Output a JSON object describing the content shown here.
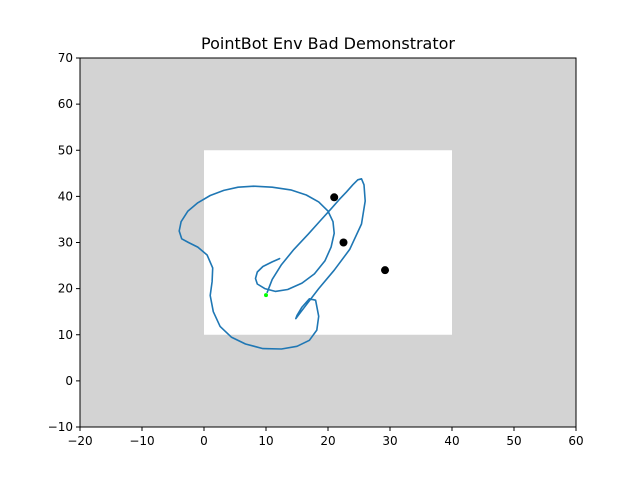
{
  "chart_data": {
    "type": "line",
    "title": "PointBot Env Bad Demonstrator",
    "xlabel": "",
    "ylabel": "",
    "xlim": [
      -20,
      60
    ],
    "ylim": [
      -10,
      70
    ],
    "xticks": [
      -20,
      -10,
      0,
      10,
      20,
      30,
      40,
      50,
      60
    ],
    "yticks": [
      -10,
      0,
      10,
      20,
      30,
      40,
      50,
      60,
      70
    ],
    "xtick_labels": [
      "−20",
      "−10",
      "0",
      "10",
      "20",
      "30",
      "40",
      "50",
      "60"
    ],
    "ytick_labels": [
      "−10",
      "0",
      "10",
      "20",
      "30",
      "40",
      "50",
      "60",
      "70"
    ],
    "grid": false,
    "colors": {
      "plot_background": "#d3d3d3",
      "free_region": "#ffffff",
      "trajectory": "#1f77b4",
      "start_point": "#00ff00",
      "obstacle_points": "#000000"
    },
    "free_region": {
      "x": [
        0,
        40
      ],
      "y": [
        10,
        50
      ]
    },
    "series": [
      {
        "x": [
          12.2,
          11.0,
          9.5,
          8.6,
          8.3,
          8.6,
          9.8,
          11.5,
          13.5,
          15.8,
          17.8,
          19.5,
          20.5,
          21.0,
          20.8,
          20.0,
          18.5,
          16.5,
          14.0,
          11.0,
          8.0,
          5.5,
          3.2,
          1.0,
          -1.0,
          -2.6,
          -3.7,
          -4.0,
          -3.6,
          -2.5,
          -1.0,
          0.5,
          1.4,
          1.3,
          1.0,
          1.5,
          2.6,
          4.4,
          6.7,
          9.5,
          12.5,
          15.0,
          17.0,
          18.2,
          18.5,
          18.0,
          17.0,
          15.8,
          15.0,
          14.8,
          15.2,
          16.5,
          18.5,
          21.0,
          23.5,
          25.4,
          26.0,
          25.8,
          25.4,
          24.8,
          24.0,
          23.0,
          21.8,
          20.5,
          18.8,
          16.8,
          14.5,
          12.5,
          11.0,
          10.2
        ],
        "y": [
          26.5,
          25.8,
          24.8,
          23.6,
          22.2,
          21.0,
          20.0,
          19.4,
          19.8,
          21.2,
          23.2,
          26.0,
          29.0,
          32.0,
          34.5,
          36.8,
          38.8,
          40.3,
          41.4,
          42.0,
          42.2,
          42.0,
          41.3,
          40.2,
          38.6,
          36.8,
          34.5,
          32.5,
          30.8,
          30.0,
          29.0,
          27.3,
          24.5,
          21.5,
          18.5,
          15.0,
          11.8,
          9.5,
          8.0,
          7.0,
          6.9,
          7.5,
          8.8,
          11.0,
          14.0,
          17.5,
          17.8,
          16.0,
          14.2,
          13.5,
          14.2,
          16.5,
          20.0,
          24.0,
          28.5,
          34.0,
          39.0,
          42.5,
          43.8,
          43.6,
          42.5,
          41.0,
          39.3,
          37.3,
          34.8,
          31.8,
          28.5,
          25.2,
          22.0,
          19.2
        ]
      }
    ],
    "start_point": {
      "x": 10.0,
      "y": 18.6
    },
    "obstacle_points": [
      {
        "x": 21.0,
        "y": 39.8
      },
      {
        "x": 22.5,
        "y": 30.0
      },
      {
        "x": 29.2,
        "y": 24.0
      }
    ]
  }
}
